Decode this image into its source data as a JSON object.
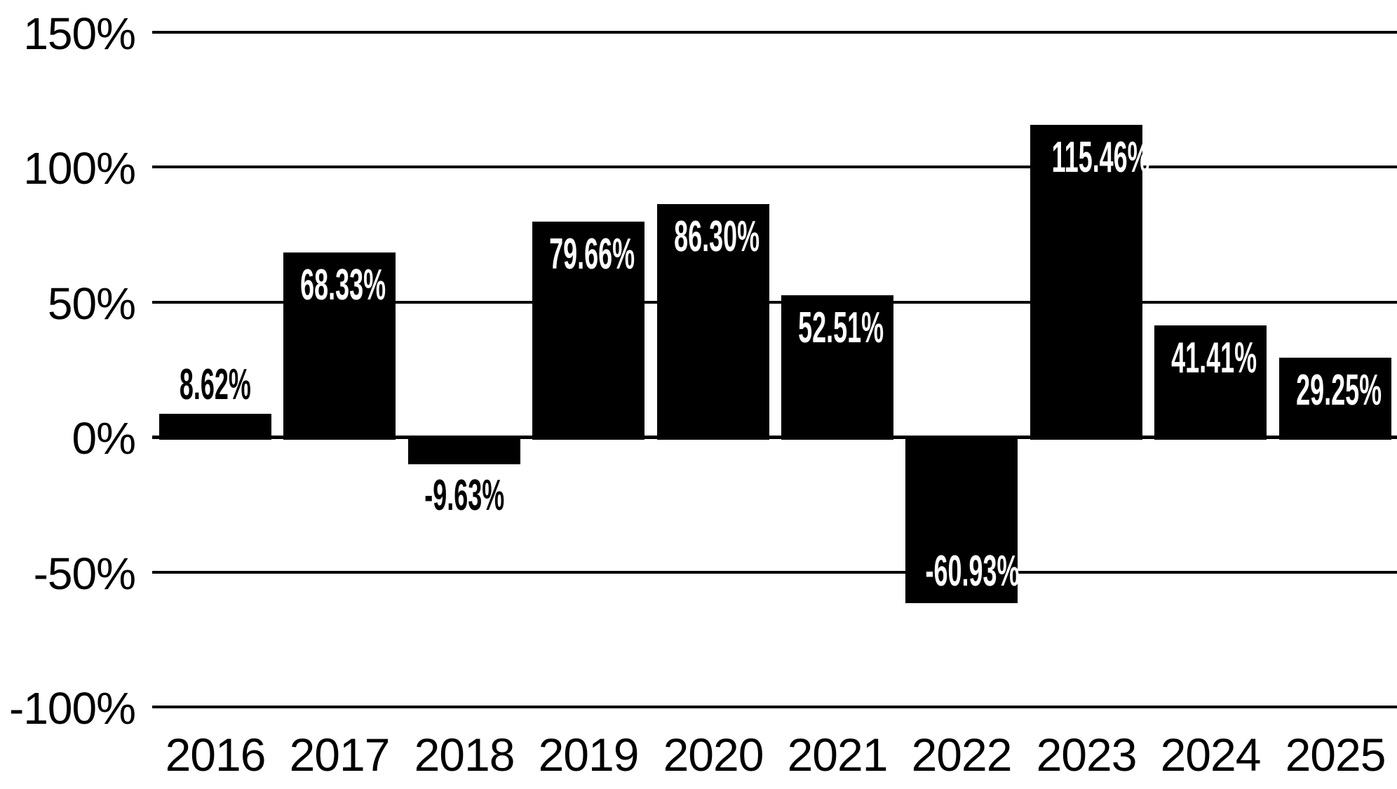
{
  "chart_data": {
    "type": "bar",
    "title": "",
    "xlabel": "",
    "ylabel": "",
    "categories": [
      "2016",
      "2017",
      "2018",
      "2019",
      "2020",
      "2021",
      "2022",
      "2023",
      "2024",
      "2025"
    ],
    "values": [
      8.62,
      68.33,
      -9.63,
      79.66,
      86.3,
      52.51,
      -60.93,
      115.46,
      41.41,
      29.25
    ],
    "bar_labels": [
      "8.62%",
      "68.33%",
      "-9.63%",
      "79.66%",
      "86.30%",
      "52.51%",
      "-60.93%",
      "115.46%",
      "41.41%",
      "29.25%"
    ],
    "bar_label_placement": [
      "above-bar",
      "inside-top",
      "below-bar",
      "inside-top",
      "inside-top",
      "inside-top",
      "inside-bottom",
      "inside-top",
      "inside-top",
      "inside-top"
    ],
    "y_axis": {
      "ticks": [
        {
          "label": "150%",
          "value": 150
        },
        {
          "label": "100%",
          "value": 100
        },
        {
          "label": "50%",
          "value": 50
        },
        {
          "label": "0%",
          "value": 0
        },
        {
          "label": "-50%",
          "value": -50
        },
        {
          "label": "-100%",
          "value": -100
        }
      ]
    },
    "ylim": [
      -100,
      150
    ],
    "grid": "horizontal",
    "legend": "none",
    "colors": {
      "bar": "#000000",
      "background": "#ffffff",
      "grid_line": "#000000",
      "axis_text": "#000000",
      "label_inside": "#ffffff",
      "label_outside": "#000000"
    }
  }
}
